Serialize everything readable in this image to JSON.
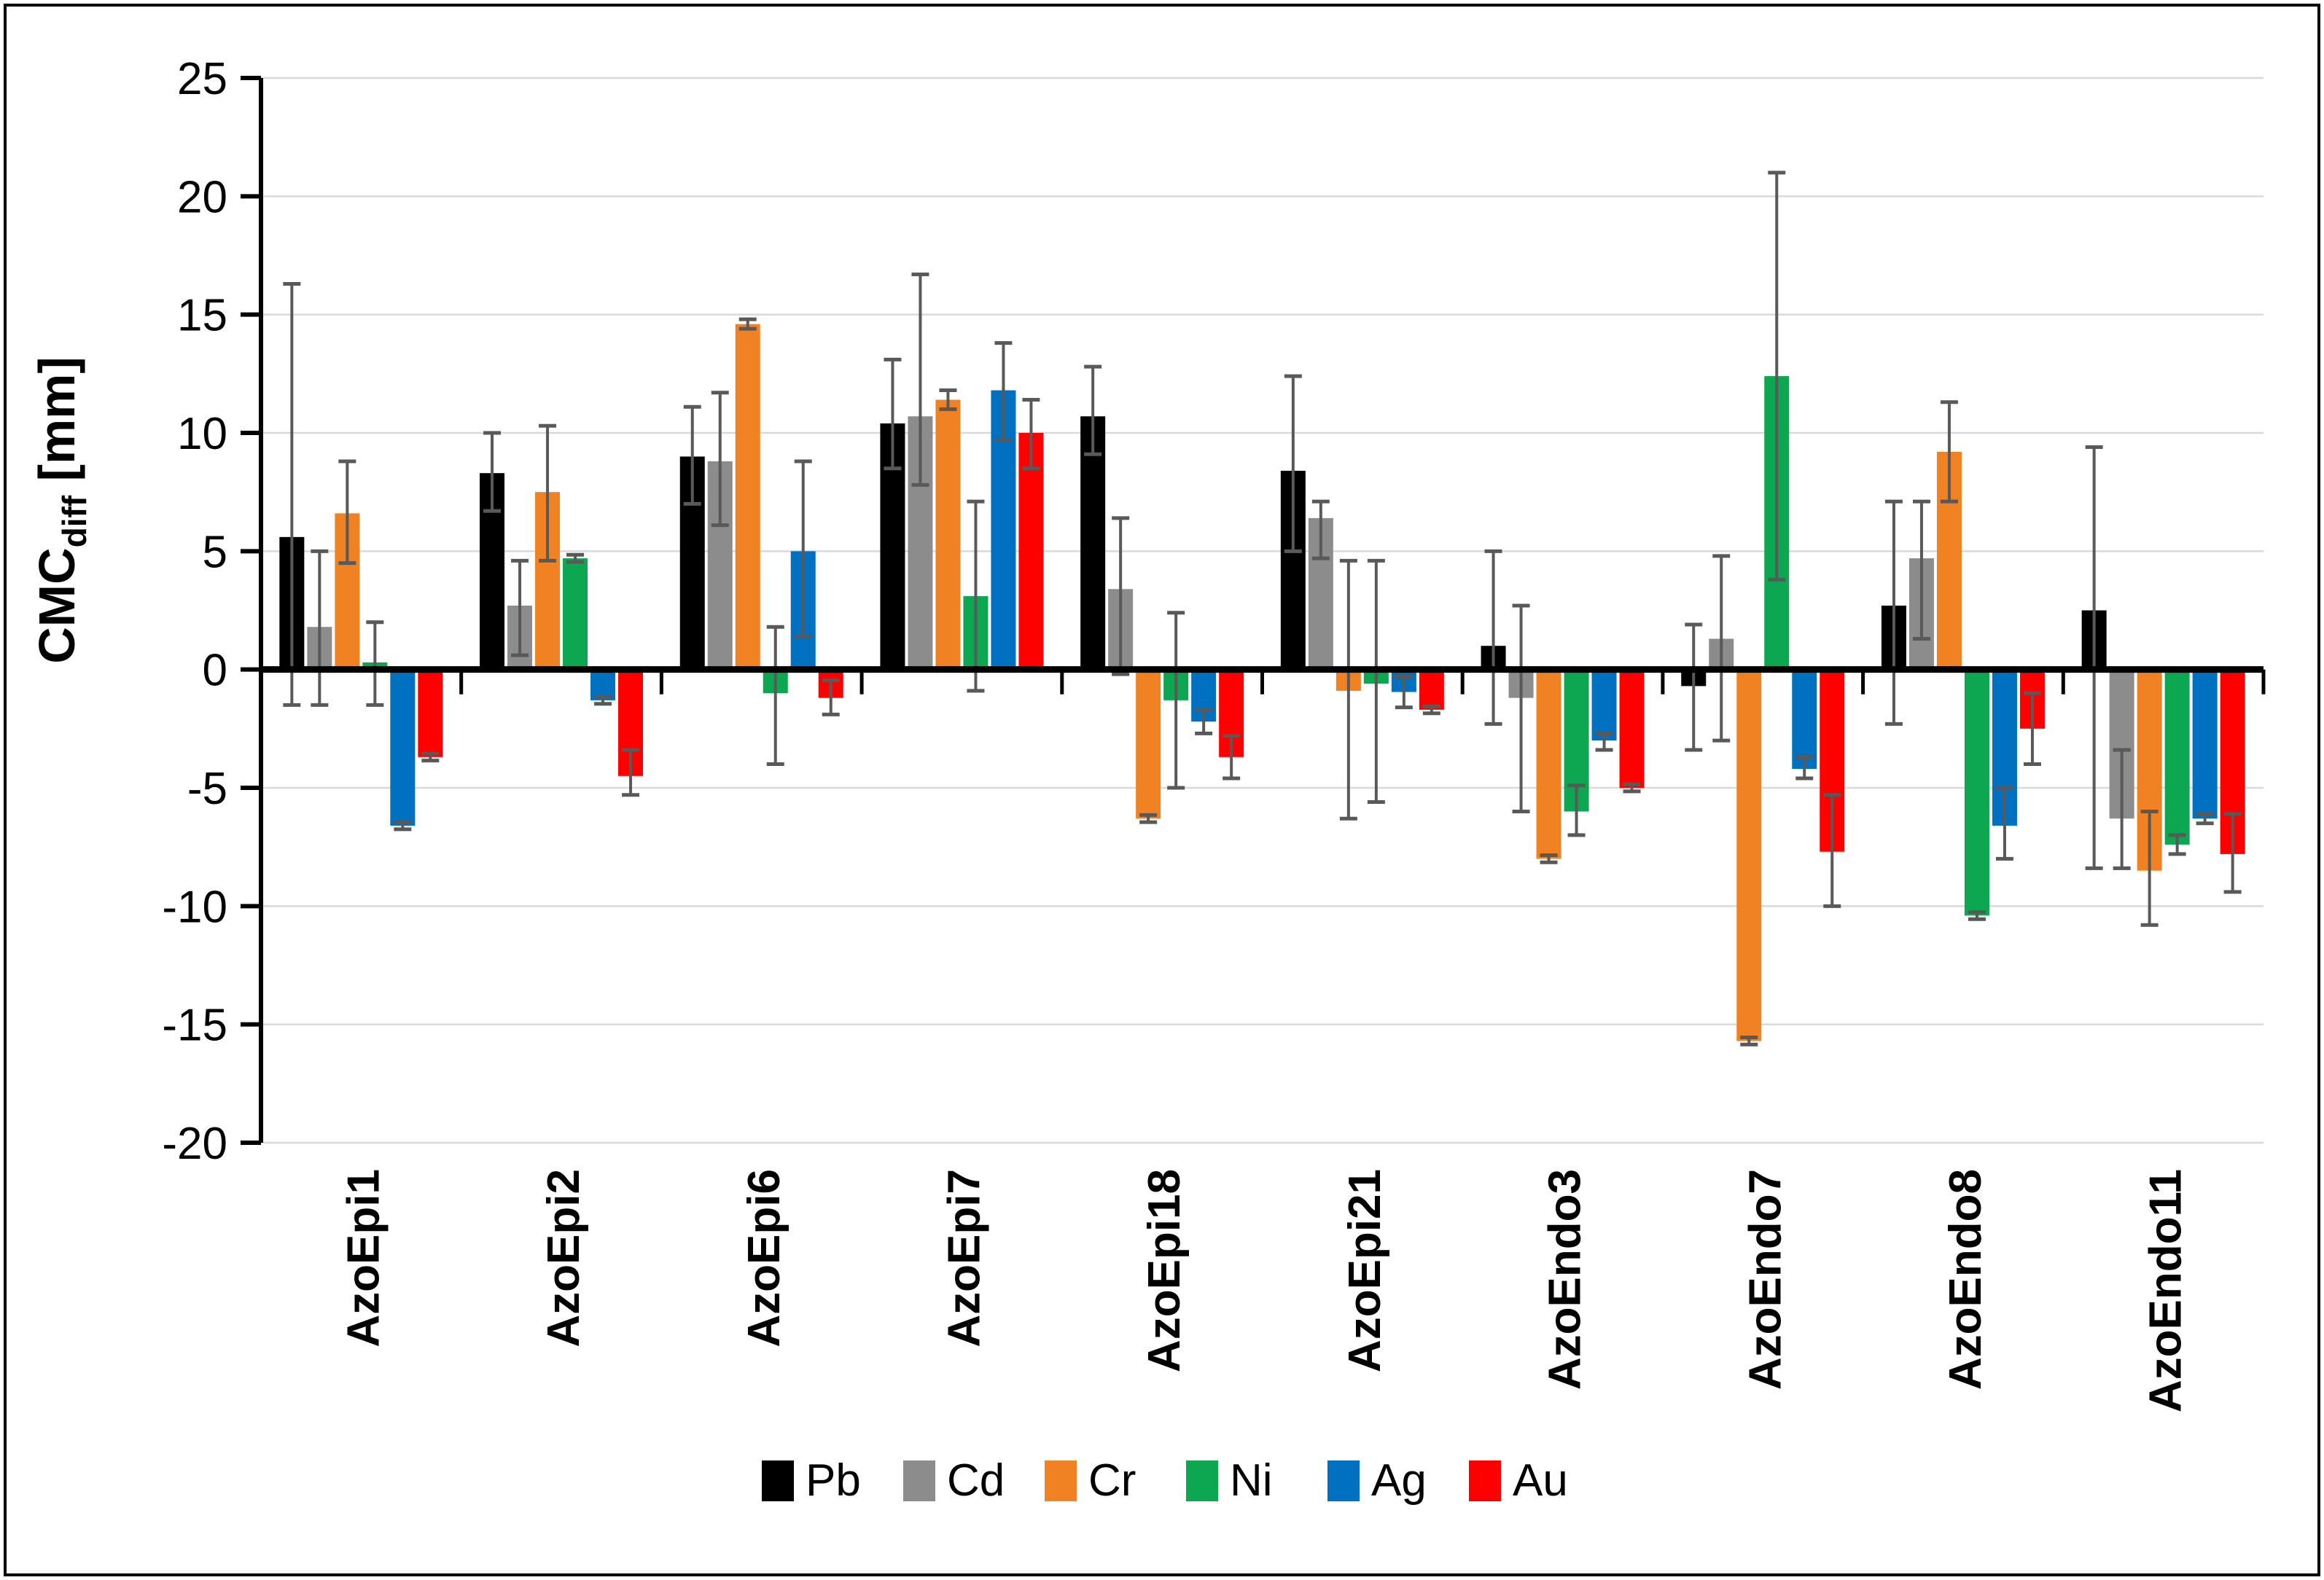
{
  "chart_data": {
    "type": "bar",
    "title": "",
    "ylabel_main": "CMC",
    "ylabel_sub": "diff",
    "ylabel_unit": " [mm]",
    "xlabel": "",
    "ylim": [
      -20,
      25
    ],
    "ytick_step": 5,
    "yticks": [
      25,
      20,
      15,
      10,
      5,
      0,
      -5,
      -10,
      -15,
      -20
    ],
    "ytick_labels": [
      "25",
      "20",
      "15",
      "10",
      "5",
      "0",
      "-5",
      "-10",
      "-15",
      "-20"
    ],
    "grid": true,
    "gridline_color": "#d9d9d9",
    "axis_color": "#000000",
    "error_bar_color": "#595959",
    "legend_position": "bottom",
    "categories": [
      "AzoEpi1",
      "AzoEpi2",
      "AzoEpi6",
      "AzoEpi7",
      "AzoEpi18",
      "AzoEpi21",
      "AzoEndo3",
      "AzoEndo7",
      "AzoEndo8",
      "AzoEndo11"
    ],
    "series": [
      {
        "name": "Pb",
        "color": "#000000",
        "values": [
          5.6,
          8.3,
          9.0,
          10.4,
          10.7,
          8.4,
          1.0,
          -0.7,
          2.7,
          2.5
        ],
        "err_lo": [
          -1.5,
          6.7,
          7.0,
          8.5,
          9.1,
          5.0,
          -2.3,
          -3.4,
          -2.3,
          -8.4
        ],
        "err_hi": [
          16.3,
          10.0,
          11.1,
          13.1,
          12.8,
          12.4,
          5.0,
          1.9,
          7.1,
          9.4
        ]
      },
      {
        "name": "Cd",
        "color": "#8c8c8c",
        "values": [
          1.8,
          2.7,
          8.8,
          10.7,
          3.4,
          6.4,
          -1.2,
          1.3,
          4.7,
          -6.3
        ],
        "err_lo": [
          -1.5,
          0.6,
          6.1,
          7.8,
          -0.2,
          4.7,
          -6.0,
          -3.0,
          1.3,
          -8.4
        ],
        "err_hi": [
          5.0,
          4.6,
          11.7,
          16.7,
          6.4,
          7.1,
          2.7,
          4.8,
          7.1,
          -3.4
        ]
      },
      {
        "name": "Cr",
        "color": "#f08223",
        "values": [
          6.6,
          7.5,
          14.6,
          11.4,
          -6.3,
          -0.9,
          -8.0,
          -15.7,
          9.2,
          -8.5
        ],
        "err_lo": [
          4.5,
          4.6,
          14.4,
          11.0,
          -6.45,
          -6.3,
          -8.15,
          -15.85,
          7.1,
          -10.8
        ],
        "err_hi": [
          8.8,
          10.3,
          14.8,
          11.8,
          -6.15,
          4.6,
          -7.85,
          -15.55,
          11.3,
          -6.0
        ]
      },
      {
        "name": "Ni",
        "color": "#0ca750",
        "values": [
          0.3,
          4.7,
          -1.0,
          3.1,
          -1.3,
          -0.6,
          -6.0,
          12.4,
          -10.4,
          -7.4
        ],
        "err_lo": [
          -1.5,
          4.55,
          -4.0,
          -0.9,
          -5.0,
          -5.6,
          -7.0,
          3.8,
          -10.55,
          -7.8
        ],
        "err_hi": [
          2.0,
          4.85,
          1.8,
          7.1,
          2.4,
          4.6,
          -4.9,
          21.0,
          -10.25,
          -7.0
        ]
      },
      {
        "name": "Ag",
        "color": "#0070c0",
        "values": [
          -6.6,
          -1.3,
          5.0,
          11.8,
          -2.2,
          -0.95,
          -3.0,
          -4.2,
          -6.6,
          -6.3
        ],
        "err_lo": [
          -6.75,
          -1.45,
          1.4,
          9.7,
          -2.7,
          -1.6,
          -3.4,
          -4.6,
          -8.0,
          -6.5
        ],
        "err_hi": [
          -6.45,
          -1.15,
          8.8,
          13.8,
          -1.7,
          -0.3,
          -2.7,
          -3.7,
          -5.0,
          -6.1
        ]
      },
      {
        "name": "Au",
        "color": "#fe0000",
        "values": [
          -3.7,
          -4.5,
          -1.2,
          10.0,
          -3.7,
          -1.7,
          -5.0,
          -7.7,
          -2.5,
          -7.8
        ],
        "err_lo": [
          -3.85,
          -5.3,
          -1.9,
          8.5,
          -4.6,
          -1.85,
          -5.15,
          -10.0,
          -4.0,
          -9.4
        ],
        "err_hi": [
          -3.55,
          -3.4,
          -0.45,
          11.4,
          -2.8,
          -1.55,
          -4.85,
          -5.3,
          -1.0,
          -6.1
        ]
      }
    ]
  },
  "frame": {
    "border_color": "#000000",
    "background": "#ffffff"
  }
}
